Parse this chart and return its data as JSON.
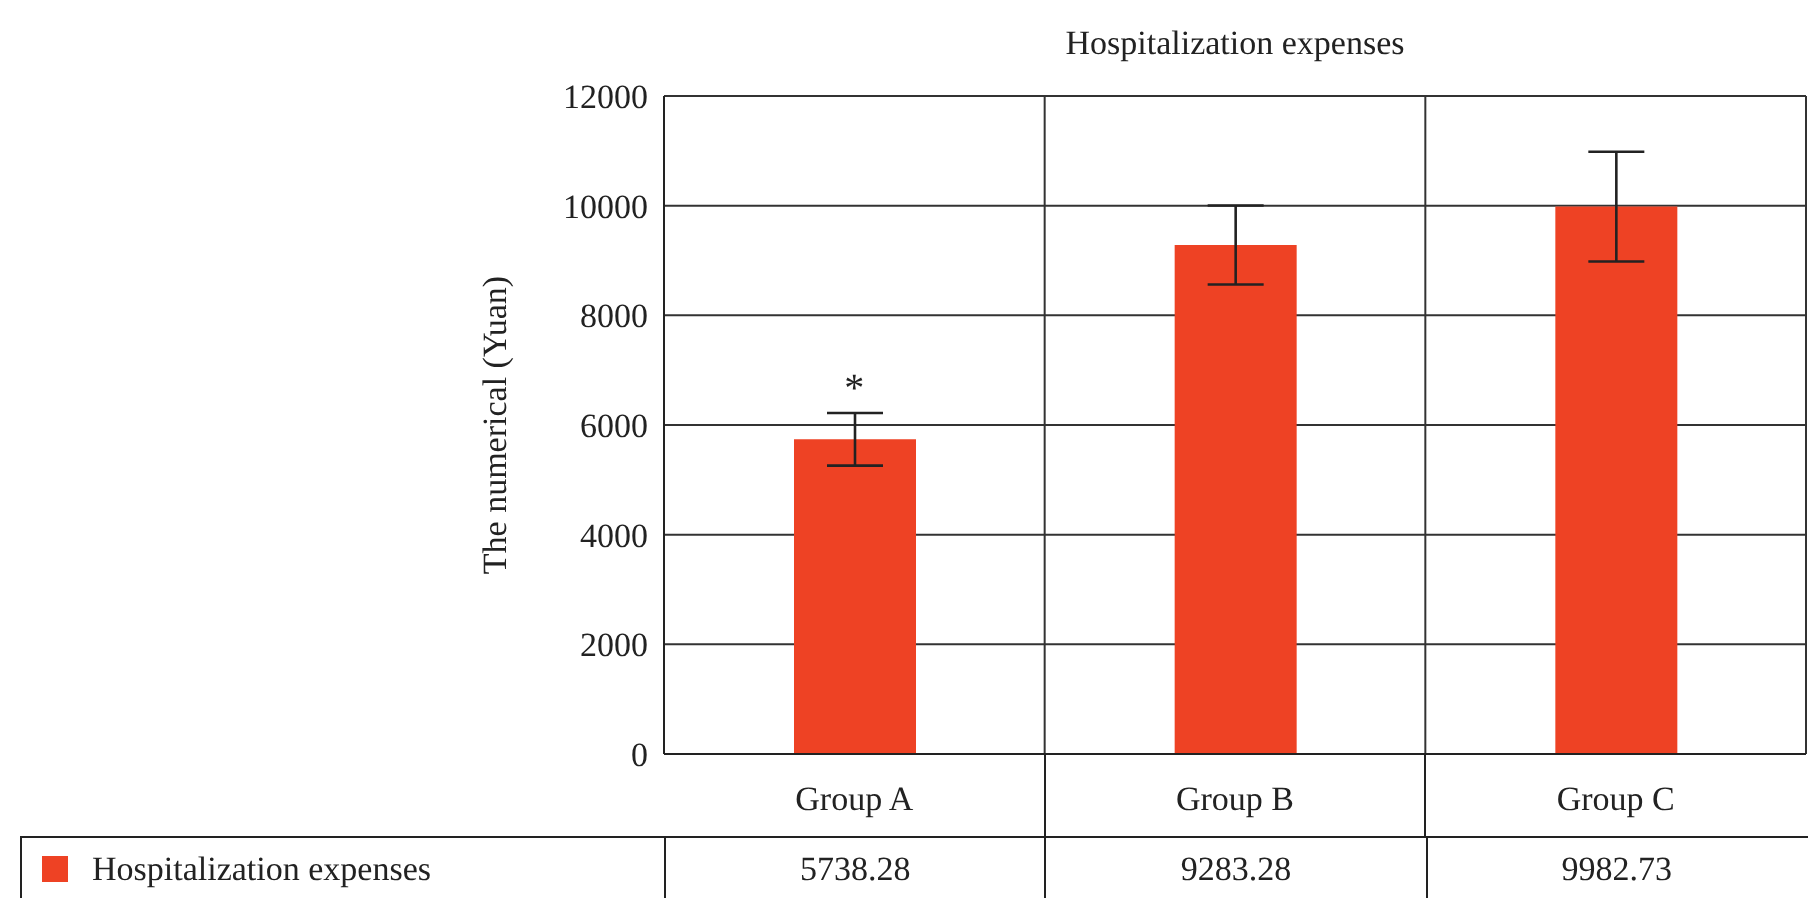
{
  "chart_data": {
    "type": "bar",
    "title": "Hospitalization expenses",
    "ylabel": "The numerical (Yuan)",
    "categories": [
      "Group A",
      "Group B",
      "Group C"
    ],
    "series": [
      {
        "name": "Hospitalization expenses",
        "color": "#ee4224",
        "values": [
          5738.28,
          9283.28,
          9982.73
        ],
        "errors": [
          480,
          720,
          1000
        ]
      }
    ],
    "ylim": [
      0,
      12000
    ],
    "yticks": [
      0,
      2000,
      4000,
      6000,
      8000,
      10000,
      12000
    ],
    "grid": true,
    "legend": "bottom left",
    "data_labels": true,
    "annotations": [
      "*"
    ]
  }
}
